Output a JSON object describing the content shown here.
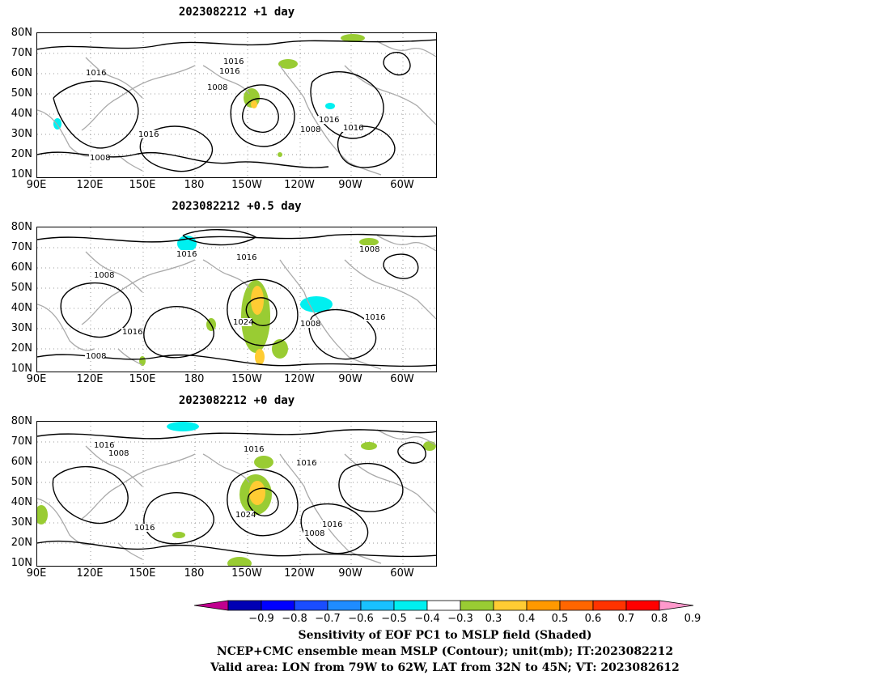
{
  "panels": [
    {
      "title": "2023082212  +1 day"
    },
    {
      "title": "2023082212  +0.5 day"
    },
    {
      "title": "2023082212  +0 day"
    }
  ],
  "axes": {
    "lat_labels": [
      "80N",
      "70N",
      "60N",
      "50N",
      "40N",
      "30N",
      "20N",
      "10N"
    ],
    "lon_labels": [
      "90E",
      "120E",
      "150E",
      "180",
      "150W",
      "120W",
      "90W",
      "60W"
    ]
  },
  "contour_labels": {
    "p0": [
      "1016",
      "1016",
      "1016",
      "1008",
      "1016",
      "1008",
      "1016",
      "1016",
      "1008"
    ],
    "p1": [
      "1016",
      "1016",
      "1008",
      "1008",
      "1016",
      "1024",
      "1008",
      "1016",
      "1008"
    ],
    "p2": [
      "1016",
      "1008",
      "1016",
      "1016",
      "1016",
      "1024",
      "1008",
      "1016"
    ]
  },
  "colorbar": {
    "labels": [
      "−0.9",
      "−0.8",
      "−0.7",
      "−0.6",
      "−0.5",
      "−0.4",
      "−0.3",
      "0.3",
      "0.4",
      "0.5",
      "0.6",
      "0.7",
      "0.8",
      "0.9"
    ],
    "colors": [
      "#c0008f",
      "#0000b4",
      "#0000ff",
      "#1a4dff",
      "#1f8cff",
      "#19c1ff",
      "#00f0f0",
      "#ffffff",
      "#99cc33",
      "#ffcc33",
      "#ff9900",
      "#ff6600",
      "#ff3300",
      "#ff0000",
      "#ff99cc"
    ]
  },
  "captions": {
    "line1": "Sensitivity of EOF PC1 to MSLP field (Shaded)",
    "line2": "NCEP+CMC ensemble mean MSLP (Contour); unit(mb); IT:2023082212",
    "line3": "Valid area: LON from 79W to 62W, LAT from 32N to 45N; VT: 2023082612"
  }
}
